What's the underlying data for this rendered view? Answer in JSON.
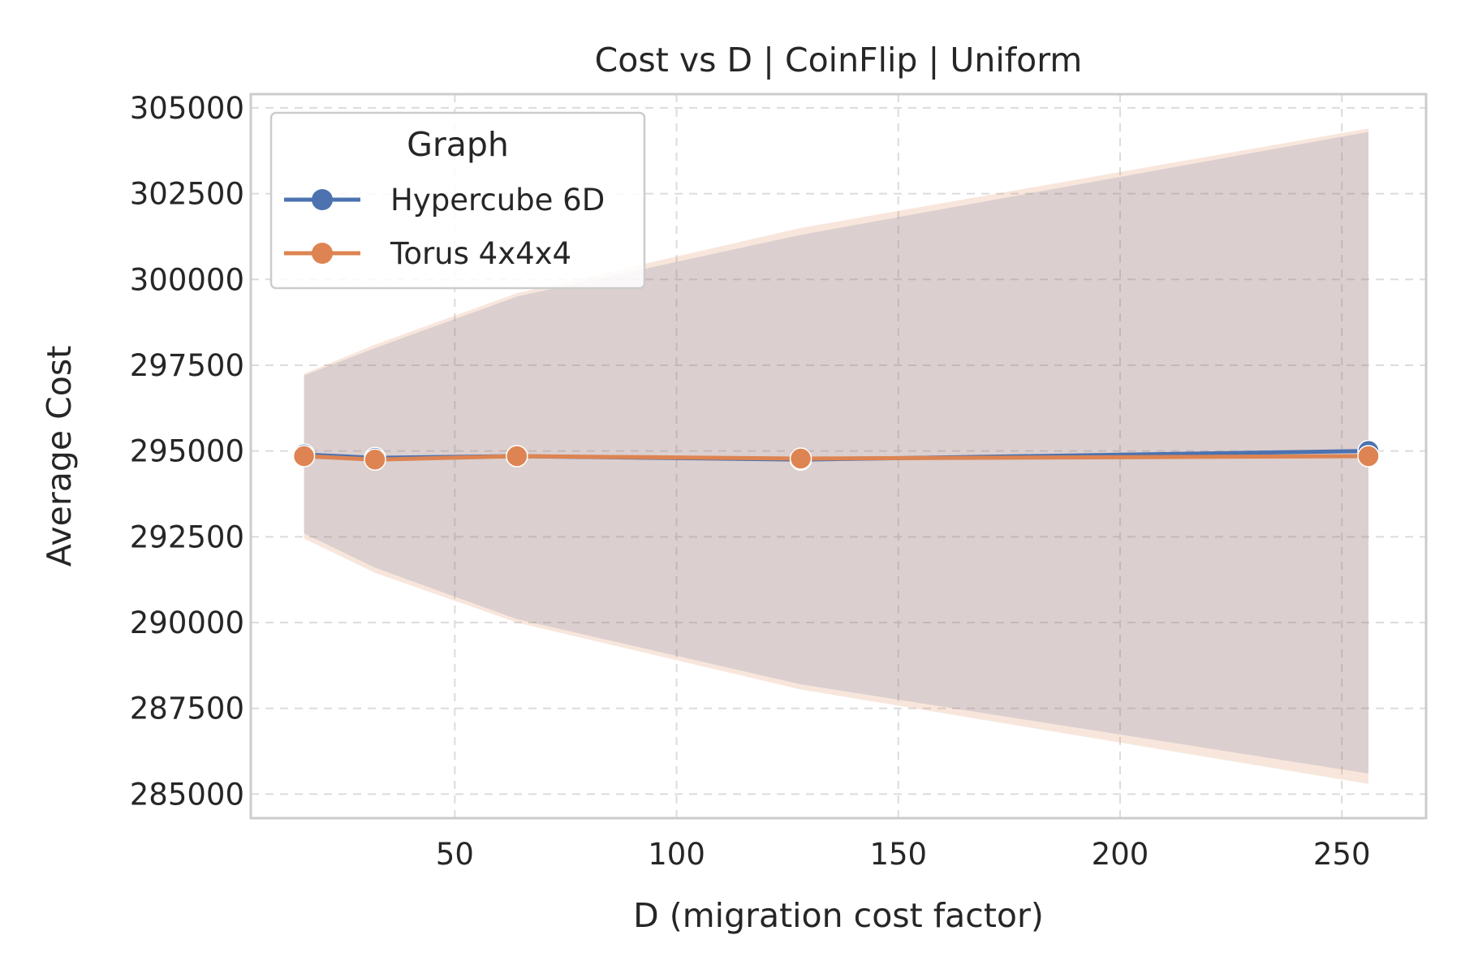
{
  "chart_data": {
    "type": "line",
    "title": "Cost vs D  |  CoinFlip  |  Uniform",
    "xlabel": "D (migration cost factor)",
    "ylabel": "Average Cost",
    "xlim": [
      4,
      269
    ],
    "ylim": [
      284300,
      305400
    ],
    "xticks": [
      50,
      100,
      150,
      200,
      250
    ],
    "yticks": [
      285000,
      287500,
      290000,
      292500,
      295000,
      297500,
      300000,
      302500,
      305000
    ],
    "grid": true,
    "legend": {
      "title": "Graph",
      "placement": "top-left"
    },
    "x": [
      16,
      32,
      64,
      128,
      256
    ],
    "series": [
      {
        "name": "Hypercube 6D",
        "color": "#4c72b0",
        "values": [
          294900,
          294800,
          294850,
          294750,
          295000
        ],
        "band_lower": [
          292600,
          291600,
          290100,
          288200,
          285600
        ],
        "band_upper": [
          297200,
          298000,
          299500,
          301300,
          304300
        ]
      },
      {
        "name": "Torus 4x4x4",
        "color": "#dd8452",
        "values": [
          294850,
          294750,
          294850,
          294780,
          294850
        ],
        "band_lower": [
          292450,
          291450,
          290000,
          288050,
          285300
        ],
        "band_upper": [
          297250,
          298100,
          299600,
          301500,
          304400
        ]
      }
    ]
  }
}
